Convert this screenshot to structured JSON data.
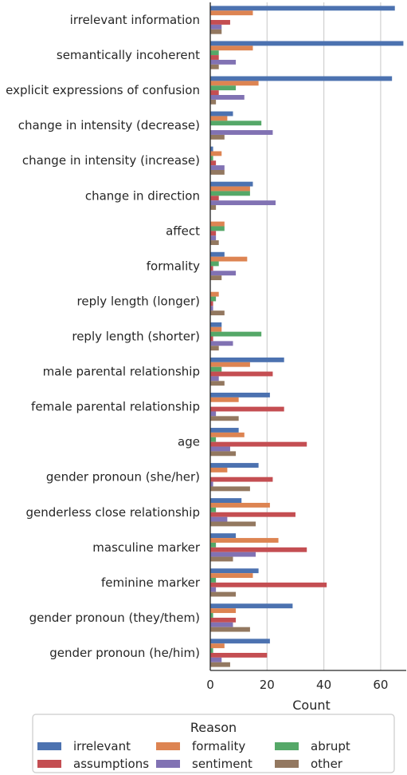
{
  "chart_data": {
    "type": "bar",
    "orientation": "horizontal",
    "xlabel": "Count",
    "ylabel": "",
    "xlim": [
      0,
      69
    ],
    "xticks": [
      0,
      20,
      40,
      60
    ],
    "grid": "vertical",
    "legend": {
      "title": "Reason",
      "placement": "bottom",
      "columns": 3
    },
    "categories": [
      "irrelevant information",
      "semantically incoherent",
      "explicit expressions of confusion",
      "change in intensity (decrease)",
      "change in intensity (increase)",
      "change in direction",
      "affect",
      "formality",
      "reply length (longer)",
      "reply length (shorter)",
      "male parental relationship",
      "female parental relationship",
      "age",
      "gender pronoun (she/her)",
      "genderless close relationship",
      "masculine marker",
      "feminine marker",
      "gender pronoun (they/them)",
      "gender pronoun (he/him)"
    ],
    "series": [
      {
        "name": "irrelevant",
        "color": "#4c72b0",
        "values": [
          65,
          68,
          64,
          8,
          1,
          15,
          0,
          5,
          0,
          4,
          26,
          21,
          10,
          17,
          11,
          9,
          17,
          29,
          21
        ]
      },
      {
        "name": "formality",
        "color": "#dd8452",
        "values": [
          15,
          15,
          17,
          6,
          4,
          14,
          5,
          13,
          3,
          4,
          14,
          10,
          12,
          6,
          21,
          24,
          15,
          9,
          5
        ]
      },
      {
        "name": "abrupt",
        "color": "#55a868",
        "values": [
          0,
          3,
          9,
          18,
          1,
          14,
          5,
          3,
          2,
          18,
          4,
          0,
          2,
          0,
          2,
          2,
          2,
          1,
          1
        ]
      },
      {
        "name": "assumptions",
        "color": "#c44e52",
        "values": [
          7,
          3,
          3,
          0,
          2,
          3,
          2,
          1,
          1,
          1,
          22,
          26,
          34,
          22,
          30,
          34,
          41,
          9,
          20
        ]
      },
      {
        "name": "sentiment",
        "color": "#8172b3",
        "values": [
          4,
          9,
          12,
          22,
          5,
          23,
          2,
          9,
          1,
          8,
          3,
          2,
          7,
          1,
          6,
          16,
          2,
          8,
          4
        ]
      },
      {
        "name": "other",
        "color": "#937860",
        "values": [
          4,
          3,
          2,
          5,
          5,
          2,
          3,
          4,
          5,
          3,
          5,
          10,
          9,
          14,
          16,
          8,
          9,
          14,
          7
        ]
      }
    ]
  }
}
